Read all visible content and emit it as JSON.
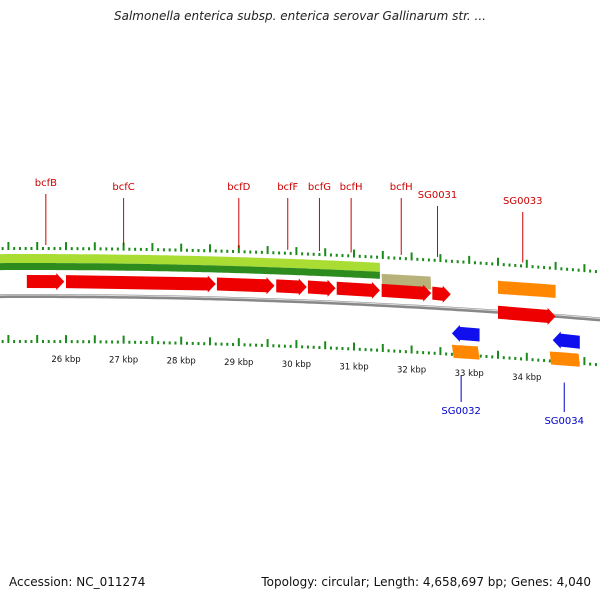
{
  "title": "Salmonella enterica subsp. enterica serovar Gallinarum str. ...",
  "footer": {
    "accession": "Accession: NC_011274",
    "summary": "Topology: circular; Length: 4,658,697 bp; Genes: 4,040"
  },
  "colors": {
    "forward_gene": "#ee0000",
    "reverse_gene": "#1010ee",
    "orange_feature": "#ff8800",
    "olive_feature": "#b8b27a",
    "gc_light": "#aadd33",
    "gc_dark": "#2e8b1e",
    "tick": "#1a8a1a",
    "forward_label": "#cc0000",
    "reverse_label": "#0000cc",
    "backbone": "#888888"
  },
  "scale": {
    "labels": [
      {
        "kbp": 26,
        "text": "26 kbp"
      },
      {
        "kbp": 27,
        "text": "27 kbp"
      },
      {
        "kbp": 28,
        "text": "28 kbp"
      },
      {
        "kbp": 29,
        "text": "29 kbp"
      },
      {
        "kbp": 30,
        "text": "30 kbp"
      },
      {
        "kbp": 31,
        "text": "31 kbp"
      },
      {
        "kbp": 32,
        "text": "32 kbp"
      },
      {
        "kbp": 33,
        "text": "33 kbp"
      },
      {
        "kbp": 34,
        "text": "34 kbp"
      }
    ]
  },
  "genes": [
    {
      "name": "bcfB",
      "strand": "forward",
      "start_kbp": 25.32,
      "end_kbp": 25.97,
      "labeled": true,
      "label_kbp": 25.65
    },
    {
      "name": "bcfC",
      "strand": "forward",
      "start_kbp": 26.0,
      "end_kbp": 28.6,
      "labeled": true,
      "label_kbp": 27.0
    },
    {
      "name": "bcfD",
      "strand": "forward",
      "start_kbp": 28.62,
      "end_kbp": 29.62,
      "labeled": true,
      "label_kbp": 29.0
    },
    {
      "name": "bcfF",
      "strand": "forward",
      "start_kbp": 29.65,
      "end_kbp": 30.18,
      "labeled": true,
      "label_kbp": 29.85
    },
    {
      "name": "bcfG",
      "strand": "forward",
      "start_kbp": 30.2,
      "end_kbp": 30.68,
      "labeled": true,
      "label_kbp": 30.4
    },
    {
      "name": "bcfH",
      "strand": "forward",
      "start_kbp": 30.7,
      "end_kbp": 31.45,
      "labeled": true,
      "label_kbp": 30.95
    },
    {
      "name": "",
      "strand": "forward",
      "start_kbp": 31.48,
      "end_kbp": 32.34,
      "labeled": false,
      "label_kbp": 31.9
    },
    {
      "name": "bcfH",
      "strand": "forward",
      "start_kbp": 31.48,
      "end_kbp": 32.34,
      "labeled": true,
      "label_kbp": 31.82
    },
    {
      "name": "SG0031",
      "strand": "forward",
      "start_kbp": 32.36,
      "end_kbp": 32.68,
      "labeled": true,
      "label_kbp": 32.45
    },
    {
      "name": "SG0032",
      "strand": "reverse",
      "start_kbp": 32.7,
      "end_kbp": 33.18,
      "labeled": true,
      "label_kbp": 32.86
    },
    {
      "name": "SG0033",
      "strand": "forward",
      "start_kbp": 33.5,
      "end_kbp": 34.5,
      "labeled": true,
      "label_kbp": 33.93
    },
    {
      "name": "SG0034",
      "strand": "reverse",
      "start_kbp": 34.45,
      "end_kbp": 34.92,
      "labeled": true,
      "label_kbp": 34.65
    }
  ],
  "features": [
    {
      "kind": "olive",
      "track": "forward",
      "start_kbp": 31.48,
      "end_kbp": 32.34
    },
    {
      "kind": "orange",
      "track": "forward",
      "start_kbp": 33.5,
      "end_kbp": 34.5
    },
    {
      "kind": "orange",
      "track": "reverse",
      "start_kbp": 32.7,
      "end_kbp": 33.18
    },
    {
      "kind": "orange",
      "track": "reverse",
      "start_kbp": 34.4,
      "end_kbp": 34.92
    }
  ],
  "gc_band": {
    "start_kbp": 25.0,
    "end_kbp": 31.45
  }
}
